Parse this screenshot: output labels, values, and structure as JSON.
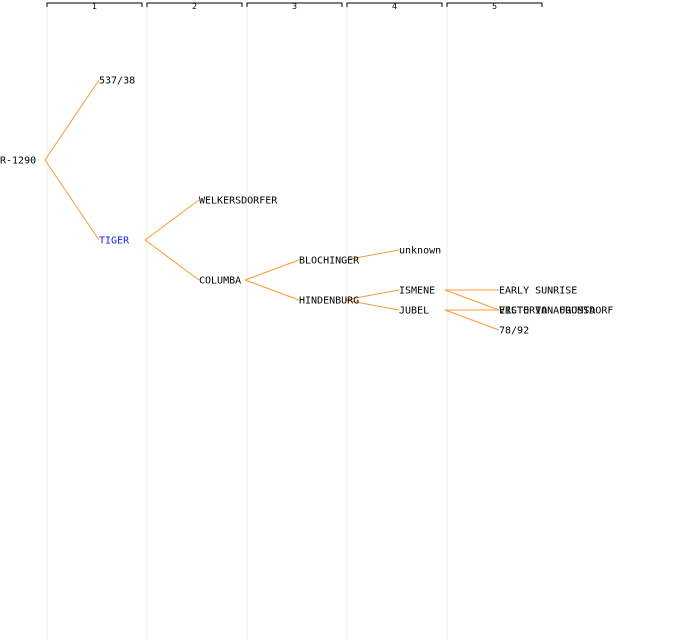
{
  "columns": [
    "1",
    "2",
    "3",
    "4",
    "5"
  ],
  "colors": {
    "edge": "#f59b35",
    "text": "#000000",
    "highlight": "#1a1aff",
    "guide": "#ededed"
  },
  "tree": {
    "label": "R-1290",
    "children": [
      {
        "label": "537/38"
      },
      {
        "label": "TIGER",
        "highlight": true,
        "children": [
          {
            "label": "WELKERSDORFER"
          },
          {
            "label": "COLUMBA",
            "children": [
              {
                "label": "BLOCHINGER",
                "children": [
                  {
                    "label": "unknown"
                  }
                ]
              },
              {
                "label": "HINDENBURG",
                "children": [
                  {
                    "label": "ISMENE",
                    "children": [
                      {
                        "label": "EARLY SUNRISE"
                      },
                      {
                        "label": "ERSTE VON FROMSDORF"
                      }
                    ]
                  },
                  {
                    "label": "JUBEL",
                    "children": [
                      {
                        "label": "VICTORIA AUGUSTA"
                      },
                      {
                        "label": "78/92"
                      }
                    ]
                  }
                ]
              }
            ]
          }
        ]
      }
    ]
  }
}
